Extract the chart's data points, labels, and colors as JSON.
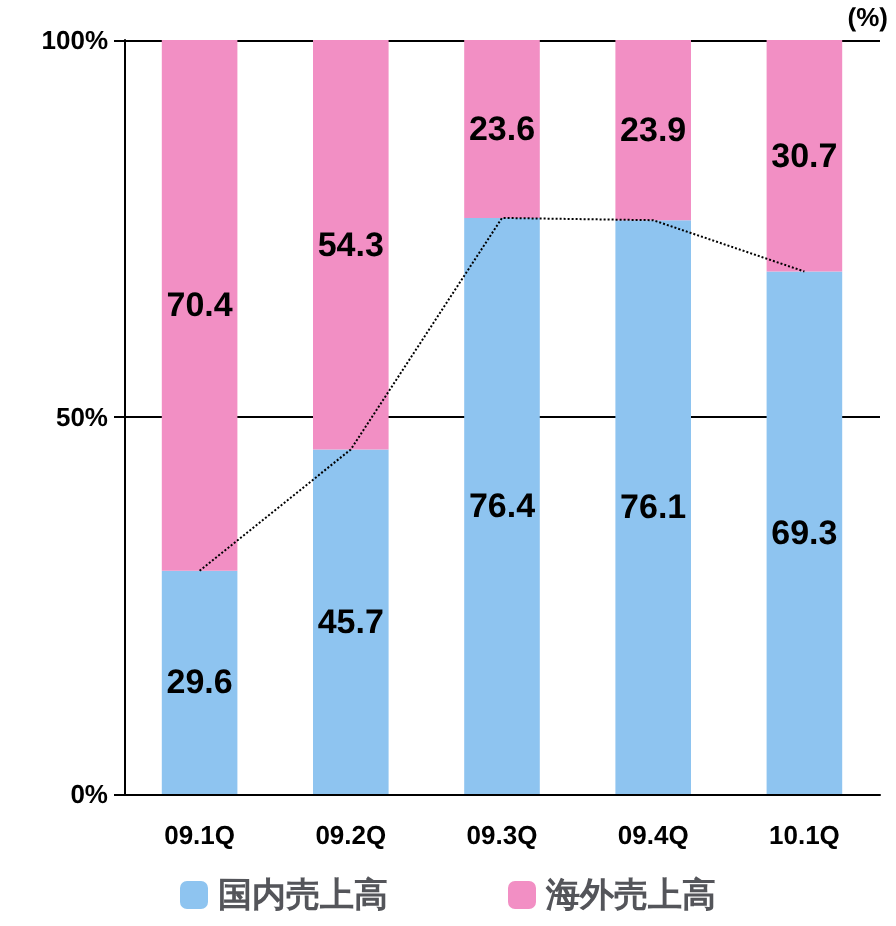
{
  "chart_data": {
    "type": "bar",
    "stacked": true,
    "categories": [
      "09.1Q",
      "09.2Q",
      "09.3Q",
      "09.4Q",
      "10.1Q"
    ],
    "series": [
      {
        "name": "国内売上高",
        "color": "#8ec4f0",
        "values": [
          29.6,
          45.7,
          76.4,
          76.1,
          69.3
        ],
        "value_labels": [
          "29.6",
          "45.7",
          "76.4",
          "76.1",
          "69.3"
        ]
      },
      {
        "name": "海外売上高",
        "color": "#f28fc4",
        "values": [
          70.4,
          54.3,
          23.6,
          23.9,
          30.7
        ],
        "value_labels": [
          "70.4",
          "54.3",
          "23.6",
          "23.9",
          "30.7"
        ]
      },
      {
        "type": "line",
        "color": "#000000",
        "line_style": "dotted",
        "marker": "none",
        "values": [
          29.6,
          45.7,
          76.4,
          76.1,
          69.3
        ]
      }
    ],
    "ylim": [
      0,
      100
    ],
    "yticks": [
      {
        "value": 0,
        "label": "0%"
      },
      {
        "value": 50,
        "label": "50%"
      },
      {
        "value": 100,
        "label": "100%"
      }
    ],
    "grid": "y",
    "legend": "bottom",
    "annotations": [
      "(%)"
    ]
  }
}
